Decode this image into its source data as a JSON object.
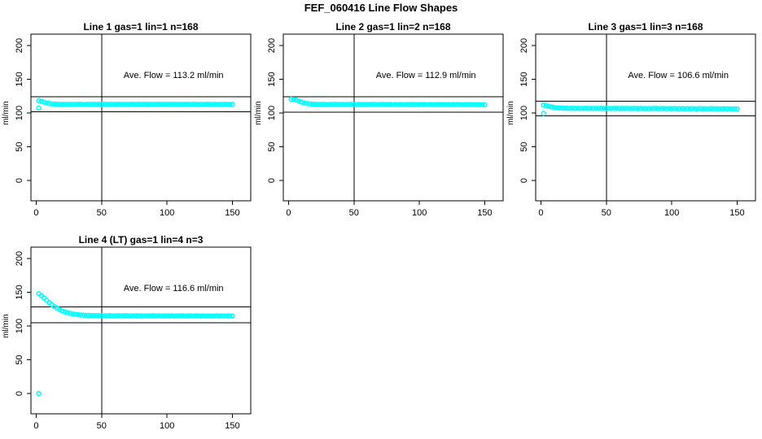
{
  "figure": {
    "title": "FEF_060416  Line Flow Shapes"
  },
  "style": {
    "point_color": "#00FFFF",
    "axis_color": "#000000",
    "background_color": "#FFFFFF"
  },
  "chart_data": [
    {
      "type": "scatter",
      "title": "Line 1 gas=1 lin=1 n=168",
      "ylabel": "ml/min",
      "ylabel_at": 100,
      "xlim": [
        -4,
        164
      ],
      "ylim": [
        -30,
        217
      ],
      "xticks": [
        0,
        50,
        100,
        150
      ],
      "yticks": [
        0,
        50,
        100,
        150,
        200
      ],
      "vline_x": 50,
      "ref_lines": [
        124.5,
        101.9
      ],
      "ave_flow": 113.2,
      "annotation": {
        "text": "Ave. Flow =  113.2  ml/min",
        "x": 105,
        "y": 152
      },
      "series": {
        "name": "flow",
        "x_start": 2,
        "x_step": 2,
        "y": [
          118.5,
          117.6,
          116.3,
          115.0,
          114.2,
          113.7,
          113.4,
          113.2,
          113.1,
          113.0,
          113.1,
          112.9,
          113.2,
          113.0,
          112.8,
          113.1,
          113.3,
          112.9,
          113.0,
          113.2,
          112.8,
          113.1,
          113.0,
          113.2,
          112.9,
          113.1,
          112.8,
          113.0,
          113.2,
          112.9,
          113.0,
          113.2,
          112.8,
          113.1,
          112.9,
          113.0,
          113.2,
          112.9,
          113.1,
          112.8,
          113.1,
          113.0,
          112.8,
          113.2,
          112.9,
          113.0,
          113.1,
          112.8,
          113.2,
          113.0,
          112.9,
          113.1,
          113.0,
          112.8,
          113.2,
          112.9,
          113.0,
          113.1,
          112.9,
          113.2,
          113.0,
          112.8,
          113.1,
          112.9,
          113.2,
          113.0,
          112.9,
          113.1,
          112.8,
          113.0,
          112.9,
          113.1,
          113.0,
          112.8,
          113.0
        ]
      },
      "outliers": [
        [
          2,
          107.5
        ]
      ]
    },
    {
      "type": "scatter",
      "title": "Line 2 gas=1 lin=2 n=168",
      "ylabel": "ml/min",
      "ylabel_at": 100,
      "xlim": [
        -4,
        164
      ],
      "ylim": [
        -30,
        217
      ],
      "xticks": [
        0,
        50,
        100,
        150
      ],
      "yticks": [
        0,
        50,
        100,
        150,
        200
      ],
      "vline_x": 50,
      "ref_lines": [
        124.2,
        101.6
      ],
      "ave_flow": 112.9,
      "annotation": {
        "text": "Ave. Flow =  112.9  ml/min",
        "x": 105,
        "y": 152
      },
      "series": {
        "name": "flow",
        "x_start": 2,
        "x_step": 2,
        "y": [
          120.6,
          120.2,
          119.3,
          117.8,
          116.2,
          115.0,
          114.2,
          113.7,
          113.4,
          113.2,
          113.0,
          112.8,
          113.1,
          112.9,
          112.7,
          113.0,
          112.9,
          113.1,
          112.8,
          112.9,
          113.0,
          112.7,
          112.9,
          113.1,
          112.8,
          112.9,
          113.0,
          112.8,
          112.7,
          112.9,
          112.8,
          113.0,
          112.9,
          112.7,
          112.8,
          113.0,
          112.7,
          112.9,
          112.8,
          112.6,
          112.9,
          112.7,
          112.8,
          112.6,
          112.9,
          112.7,
          112.8,
          112.9,
          112.6,
          112.8,
          112.7,
          112.8,
          112.6,
          112.9,
          112.7,
          112.6,
          112.8,
          112.7,
          112.9,
          112.6,
          112.7,
          112.5,
          112.8,
          112.6,
          112.7,
          112.5,
          112.6,
          112.8,
          112.5,
          112.7,
          112.5,
          112.6,
          112.4,
          112.5,
          112.3
        ]
      },
      "outliers": []
    },
    {
      "type": "scatter",
      "title": "Line 3 gas=1 lin=3 n=168",
      "ylabel": "ml/min",
      "ylabel_at": 100,
      "xlim": [
        -4,
        164
      ],
      "ylim": [
        -30,
        217
      ],
      "xticks": [
        0,
        50,
        100,
        150
      ],
      "yticks": [
        0,
        50,
        100,
        150,
        200
      ],
      "vline_x": 50,
      "ref_lines": [
        117.3,
        95.9
      ],
      "ave_flow": 106.6,
      "annotation": {
        "text": "Ave. Flow =  106.6  ml/min",
        "x": 105,
        "y": 152
      },
      "series": {
        "name": "flow",
        "x_start": 2,
        "x_step": 2,
        "y": [
          111.8,
          111.2,
          110.2,
          109.2,
          108.4,
          107.9,
          107.6,
          107.4,
          107.2,
          107.1,
          107.0,
          107.2,
          106.9,
          107.1,
          106.8,
          107.0,
          107.1,
          106.9,
          107.0,
          106.8,
          107.0,
          106.9,
          107.1,
          106.8,
          106.9,
          107.0,
          106.8,
          106.9,
          107.0,
          106.7,
          106.9,
          106.8,
          107.0,
          106.7,
          106.9,
          106.8,
          106.6,
          106.9,
          106.7,
          106.8,
          106.6,
          106.8,
          106.7,
          106.9,
          106.6,
          106.7,
          106.8,
          106.5,
          106.7,
          106.6,
          106.8,
          106.5,
          106.6,
          106.7,
          106.4,
          106.6,
          106.5,
          106.7,
          106.4,
          106.5,
          106.6,
          106.4,
          106.5,
          106.3,
          106.6,
          106.4,
          106.5,
          106.3,
          106.4,
          106.5,
          106.3,
          106.4,
          106.2,
          106.3,
          106.2
        ]
      },
      "outliers": [
        [
          2,
          99.5
        ]
      ]
    },
    {
      "type": "scatter",
      "title": "Line 4 (LT) gas=1 lin=4 n=3",
      "ylabel": "ml/min",
      "ylabel_at": 100,
      "xlim": [
        -4,
        164
      ],
      "ylim": [
        -30,
        217
      ],
      "xticks": [
        0,
        50,
        100,
        150
      ],
      "yticks": [
        0,
        50,
        100,
        150,
        200
      ],
      "vline_x": 50,
      "ref_lines": [
        128.3,
        104.9
      ],
      "ave_flow": 116.6,
      "annotation": {
        "text": "Ave. Flow =  116.6  ml/min",
        "x": 105,
        "y": 152
      },
      "series": {
        "name": "flow",
        "x_start": 2,
        "x_step": 2,
        "y": [
          148.0,
          145.2,
          141.8,
          138.2,
          134.8,
          131.6,
          128.8,
          126.4,
          124.3,
          122.5,
          121.0,
          119.8,
          118.8,
          118.0,
          117.4,
          116.9,
          116.5,
          116.2,
          116.0,
          115.8,
          115.7,
          115.6,
          115.5,
          115.5,
          115.4,
          115.4,
          115.2,
          115.5,
          115.3,
          115.1,
          115.4,
          115.2,
          115.3,
          115.5,
          115.2,
          115.3,
          115.1,
          115.4,
          115.2,
          115.3,
          115.0,
          115.3,
          115.1,
          115.2,
          115.4,
          115.1,
          115.3,
          115.0,
          115.2,
          115.3,
          115.1,
          115.2,
          115.0,
          115.3,
          115.1,
          115.2,
          115.0,
          115.1,
          115.3,
          115.0,
          115.2,
          115.1,
          114.9,
          115.2,
          115.0,
          115.1,
          114.9,
          115.0,
          115.2,
          114.9,
          115.1,
          115.0,
          114.9,
          115.1,
          115.0
        ]
      },
      "outliers": [
        [
          2,
          0
        ]
      ]
    }
  ]
}
